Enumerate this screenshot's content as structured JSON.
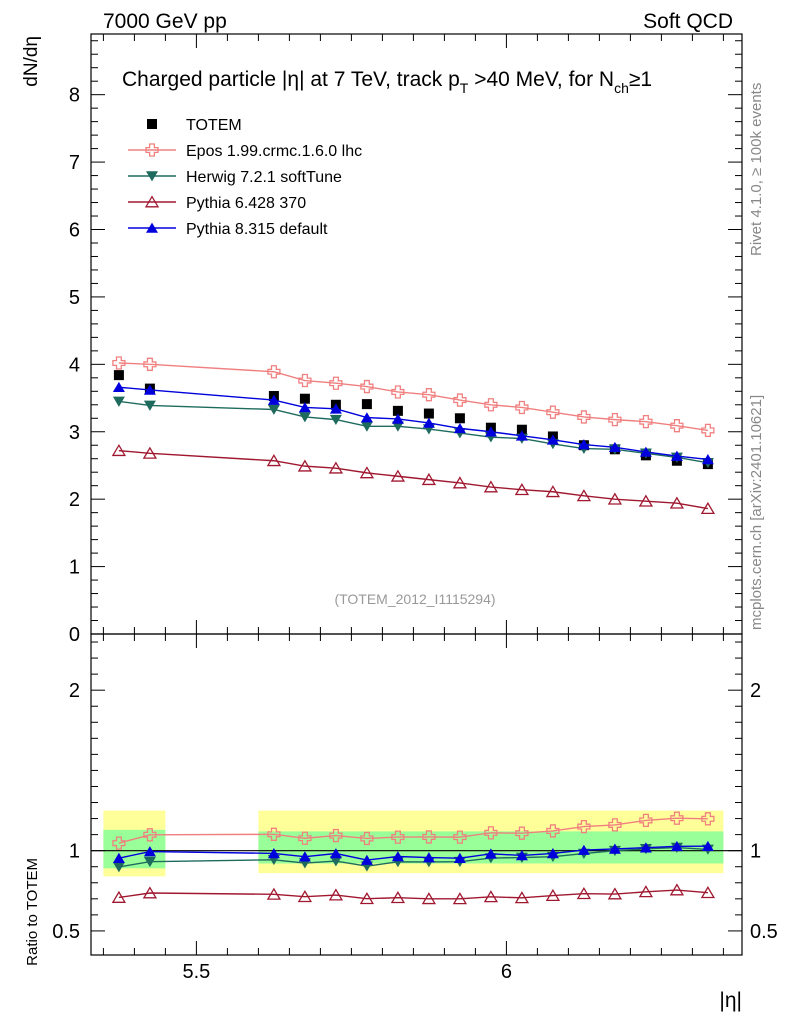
{
  "header": {
    "left": "7000 GeV pp",
    "right": "Soft QCD"
  },
  "side_labels": {
    "rivet": "Rivet 4.1.0, ≥ 100k events",
    "mcplots": "mcplots.cern.ch [arXiv:2401.10621]"
  },
  "chart_data": {
    "type": "scatter",
    "title_parts": {
      "a": "Charged particle |",
      "eta": "η",
      "b": "| at 7 TeV, track p",
      "b_sub": "T",
      "c": " >40 MeV, for N",
      "c_sub": "ch",
      "d": "≥1"
    },
    "watermark": "(TOTEM_2012_I1115294)",
    "xlabel": "|η|",
    "ylabel": "dN/dη",
    "ratio_ylabel": "Ratio to TOTEM",
    "xlim": [
      5.33,
      6.38
    ],
    "ylim": [
      0,
      8.9
    ],
    "ratio_ylim": [
      0.35,
      2.35
    ],
    "x_ticks": [
      5.5,
      6
    ],
    "x_tick_labels": [
      "5.5",
      "6"
    ],
    "y_ticks": [
      0,
      1,
      2,
      3,
      4,
      5,
      6,
      7,
      8
    ],
    "y_tick_labels": [
      "0",
      "1",
      "2",
      "3",
      "4",
      "5",
      "6",
      "7",
      "8"
    ],
    "ratio_ticks": [
      0.5,
      1,
      2
    ],
    "ratio_tick_labels": [
      "0.5",
      "1",
      "2"
    ],
    "x": [
      5.375,
      5.425,
      5.625,
      5.675,
      5.725,
      5.775,
      5.825,
      5.875,
      5.925,
      5.975,
      6.025,
      6.075,
      6.125,
      6.175,
      6.225,
      6.275,
      6.325
    ],
    "data": {
      "name": "TOTEM",
      "x": [
        5.375,
        5.425,
        5.625,
        5.675,
        5.725,
        5.775,
        5.825,
        5.875,
        5.925,
        5.975,
        6.025,
        6.075,
        6.125,
        6.175,
        6.225,
        6.275,
        6.325
      ],
      "values": [
        3.84,
        3.64,
        3.53,
        3.49,
        3.4,
        3.41,
        3.31,
        3.27,
        3.2,
        3.06,
        3.03,
        2.93,
        2.8,
        2.74,
        2.65,
        2.57,
        2.52
      ],
      "band_inner": [
        {
          "x0": 5.35,
          "x1": 5.45,
          "lo": 0.89,
          "hi": 1.13
        },
        {
          "x0": 5.6,
          "x1": 6.35,
          "lo": 0.92,
          "hi": 1.12
        }
      ],
      "band_outer": [
        {
          "x0": 5.35,
          "x1": 5.45,
          "lo": 0.84,
          "hi": 1.25
        },
        {
          "x0": 5.6,
          "x1": 6.35,
          "lo": 0.86,
          "hi": 1.25
        }
      ]
    },
    "series": [
      {
        "name": "Epos 1.99.crmc.1.6.0 lhc",
        "color": "#f08080",
        "marker": "cross-open",
        "values": [
          4.02,
          4.0,
          3.89,
          3.76,
          3.72,
          3.67,
          3.59,
          3.55,
          3.47,
          3.4,
          3.36,
          3.29,
          3.22,
          3.18,
          3.15,
          3.09,
          3.02
        ]
      },
      {
        "name": "Herwig 7.2.1 softTune",
        "color": "#1e6b5e",
        "marker": "triangle-down",
        "values": [
          3.45,
          3.39,
          3.33,
          3.22,
          3.18,
          3.08,
          3.08,
          3.04,
          2.98,
          2.92,
          2.9,
          2.82,
          2.75,
          2.74,
          2.68,
          2.62,
          2.54
        ]
      },
      {
        "name": "Pythia 6.428 370",
        "color": "#a01830",
        "marker": "triangle-up-open",
        "values": [
          2.72,
          2.68,
          2.57,
          2.49,
          2.46,
          2.39,
          2.34,
          2.29,
          2.24,
          2.18,
          2.14,
          2.11,
          2.05,
          2.0,
          1.97,
          1.94,
          1.86
        ]
      },
      {
        "name": "Pythia 8.315 default",
        "color": "#0000dd",
        "marker": "triangle-up",
        "values": [
          3.66,
          3.62,
          3.47,
          3.36,
          3.34,
          3.21,
          3.19,
          3.13,
          3.05,
          3.0,
          2.94,
          2.88,
          2.81,
          2.77,
          2.7,
          2.64,
          2.59
        ]
      }
    ]
  }
}
